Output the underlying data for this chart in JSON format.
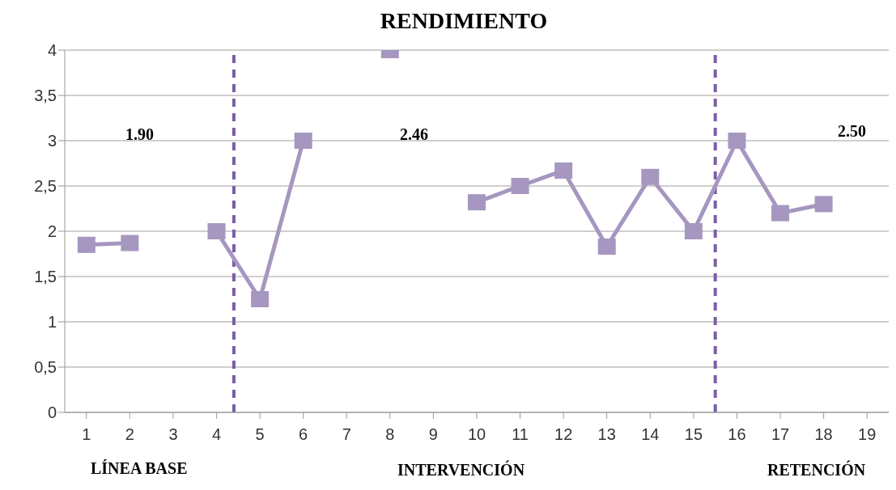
{
  "chart_data": {
    "type": "line",
    "title": "RENDIMIENTO",
    "x": [
      1,
      2,
      3,
      4,
      5,
      6,
      7,
      8,
      9,
      10,
      11,
      12,
      13,
      14,
      15,
      16,
      17,
      18
    ],
    "series": [
      {
        "color": "#a597c0",
        "values": [
          1.85,
          1.87,
          null,
          2.0,
          1.25,
          3.0,
          null,
          4.0,
          null,
          2.32,
          2.5,
          2.67,
          1.83,
          2.6,
          2.0,
          3.0,
          2.2,
          2.3
        ]
      }
    ],
    "xlim": [
      0.5,
      19.5
    ],
    "xticks": [
      1,
      2,
      3,
      4,
      5,
      6,
      7,
      8,
      9,
      10,
      11,
      12,
      13,
      14,
      15,
      16,
      17,
      18,
      19
    ],
    "ylim": [
      0,
      4
    ],
    "yticks": [
      0,
      {
        "value": 0.5,
        "label": "0,5"
      },
      1,
      {
        "value": 1.5,
        "label": "1,5"
      },
      2,
      {
        "value": 2.5,
        "label": "2,5"
      },
      3,
      {
        "value": 3.5,
        "label": "3,5"
      },
      4
    ],
    "grid": "y",
    "marker": "square",
    "line_style": "solid",
    "ref_lines": [
      {
        "axis": "x",
        "value": 4.4,
        "color": "#7b5ea7",
        "line_style": "dashed"
      },
      {
        "axis": "x",
        "value": 15.5,
        "color": "#7b5ea7",
        "line_style": "dashed"
      }
    ],
    "annotations": [
      "1.90",
      "2.46",
      "2.50",
      "LÍNEA BASE",
      "INTERVENCIÓN",
      "RETENCIÓN"
    ]
  }
}
